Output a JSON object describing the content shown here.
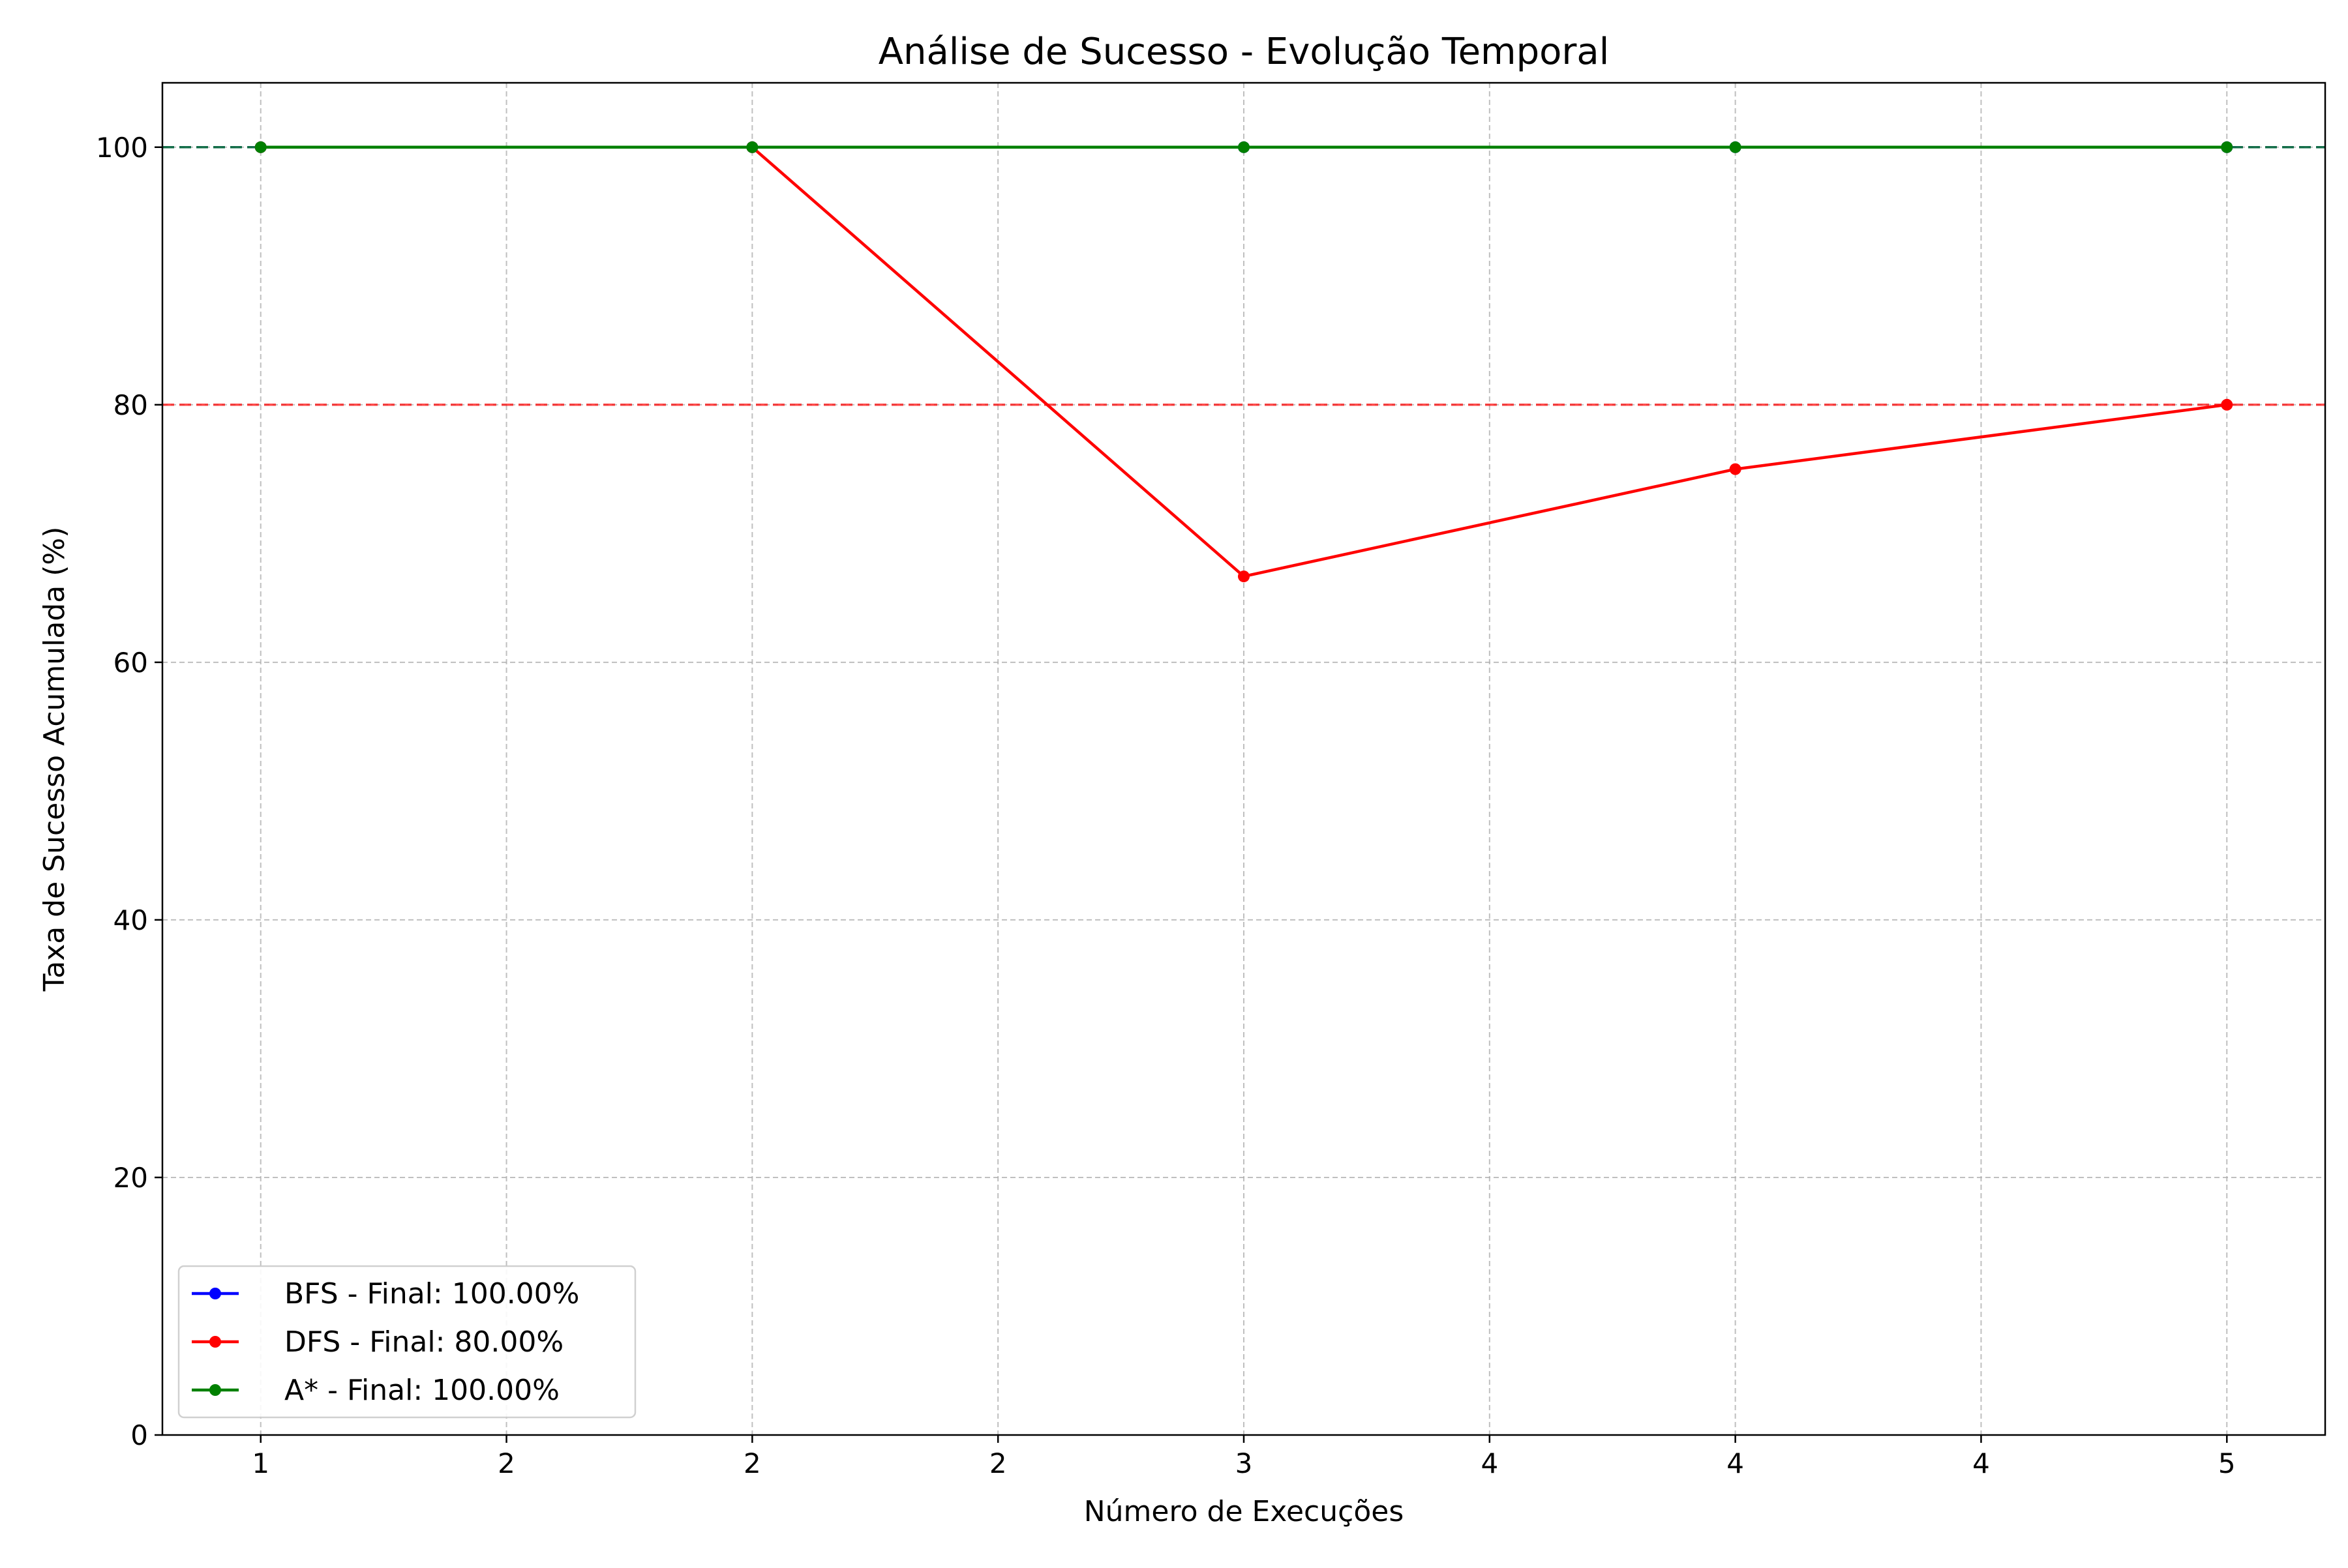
{
  "chart_data": {
    "type": "line",
    "title": "Análise de Sucesso - Evolução Temporal",
    "xlabel": "Número de Execuções",
    "ylabel": "Taxa de Sucesso Acumulada (%)",
    "x": [
      1,
      2,
      3,
      4,
      5
    ],
    "xlim": [
      0.8,
      5.2
    ],
    "ylim": [
      0,
      105
    ],
    "x_ticks": [
      1,
      1.5,
      2,
      2.5,
      3,
      3.5,
      4,
      4.5,
      5
    ],
    "x_tick_labels": [
      "1",
      "2",
      "2",
      "2",
      "3",
      "4",
      "4",
      "4",
      "5"
    ],
    "y_ticks": [
      0,
      20,
      40,
      60,
      80,
      100
    ],
    "y_tick_labels": [
      "0",
      "20",
      "40",
      "60",
      "80",
      "100"
    ],
    "grid": true,
    "legend_position": "lower-left",
    "series": [
      {
        "name": "BFS - Final: 100.00%",
        "color": "#0000ff",
        "values": [
          100,
          100,
          100,
          100,
          100
        ],
        "final": 100
      },
      {
        "name": "DFS - Final: 80.00%",
        "color": "#ff0000",
        "values": [
          100,
          100,
          66.67,
          75,
          80
        ],
        "final": 80
      },
      {
        "name": "A* - Final: 100.00%",
        "color": "#008000",
        "values": [
          100,
          100,
          100,
          100,
          100
        ],
        "final": 100
      }
    ]
  }
}
